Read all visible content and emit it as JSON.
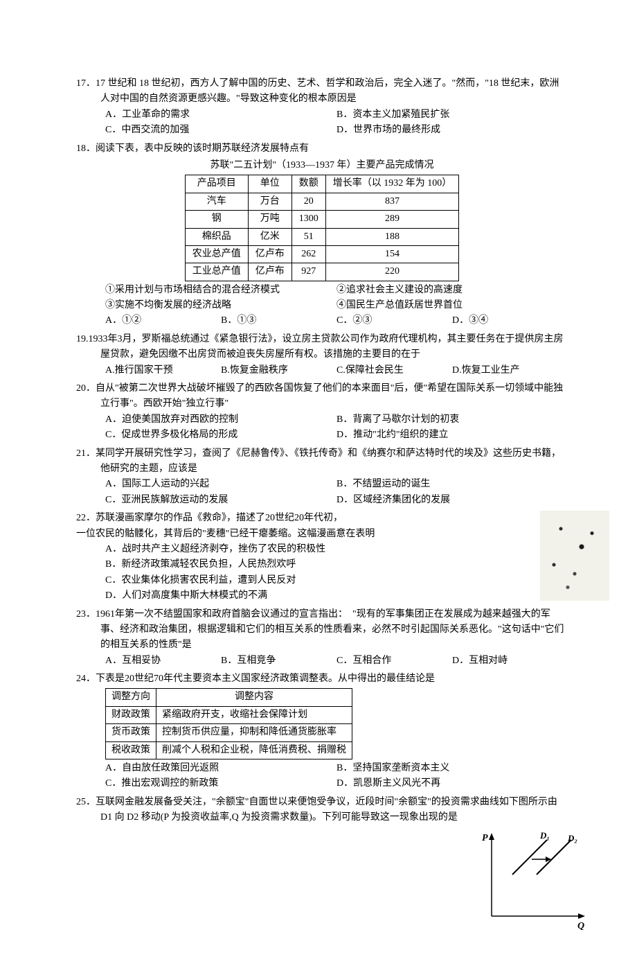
{
  "q17": {
    "num": "17．",
    "text": "17 世纪和 18 世纪初，西方人了解中国的历史、艺术、哲学和政治后，完全入迷了。\"然而，\"18 世纪末，欧洲人对中国的自然资源更感兴趣。\"导致这种变化的根本原因是",
    "opts": {
      "a": "A．工业革命的需求",
      "b": "B．资本主义加紧殖民扩张",
      "c": "C．中西交流的加强",
      "d": "D．世界市场的最终形成"
    }
  },
  "q18": {
    "num": "18．",
    "text": "阅读下表，表中反映的该时期苏联经济发展特点有",
    "caption": "苏联\"二五计划\"（1933—1937 年）主要产品完成情况",
    "table": {
      "headers": [
        "产品项目",
        "单位",
        "数额",
        "增长率（以 1932 年为 100）"
      ],
      "rows": [
        [
          "汽车",
          "万台",
          "20",
          "837"
        ],
        [
          "钢",
          "万吨",
          "1300",
          "289"
        ],
        [
          "棉织品",
          "亿米",
          "51",
          "188"
        ],
        [
          "农业总产值",
          "亿卢布",
          "262",
          "154"
        ],
        [
          "工业总产值",
          "亿卢布",
          "927",
          "220"
        ]
      ]
    },
    "notes": {
      "n1": "①采用计划与市场相结合的混合经济模式",
      "n2": "②追求社会主义建设的高速度",
      "n3": "③实施不均衡发展的经济战略",
      "n4": "④国民生产总值跃居世界首位"
    },
    "opts": {
      "a": "A．①②",
      "b": "B．①③",
      "c": "C．②③",
      "d": "D．③④"
    }
  },
  "q19": {
    "num": "19.",
    "text": "1933年3月，罗斯福总统通过《紧急银行法》，设立房主贷款公司作为政府代理机构，其主要任务在于提供房主房屋贷款，避免因缴不出房贷而被迫丧失房屋所有权。该措施的主要目的在于",
    "opts": {
      "a": "A.推行国家干预",
      "b": "B.恢复金融秩序",
      "c": "C.保障社会民生",
      "d": "D.恢复工业生产"
    }
  },
  "q20": {
    "num": "20．",
    "text": "自从\"被第二次世界大战破坏摧毁了的西欧各国恢复了他们的本来面目\"后，便\"希望在国际关系一切领域中能独立行事\"。西欧开始\"独立行事\"",
    "opts": {
      "a": "A．迫使美国放弃对西欧的控制",
      "b": "B．背离了马歇尔计划的初衷",
      "c": "C．促成世界多极化格局的形成",
      "d": "D．推动\"北约\"组织的建立"
    }
  },
  "q21": {
    "num": "21．",
    "text": "某同学开展研究性学习，查阅了《尼赫鲁传》、《铁托传奇》和《纳赛尔和萨达特时代的埃及》这些历史书籍，他研究的主题，应该是",
    "opts": {
      "a": "A．国际工人运动的兴起",
      "b": "B．不结盟运动的诞生",
      "c": "C．亚洲民族解放运动的发展",
      "d": "D．区域经济集团化的发展"
    }
  },
  "q22": {
    "num": "22．",
    "text": "苏联漫画家摩尔的作品《救命》，描述了20世纪20年代初，",
    "text2": "一位农民的骷髅化，其背后的\"麦穗\"已经干瘪萎缩。这幅漫画意在表明",
    "opts": {
      "a": "A．战时共产主义超经济剥夺，挫伤了农民的积极性",
      "b": "B．新经济政策减轻农民负担，人民热烈欢呼",
      "c": "C．农业集体化损害农民利益，遭到人民反对",
      "d": "D．人们对高度集中斯大林模式的不满"
    }
  },
  "q23": {
    "num": "23．",
    "text": "1961年第一次不结盟国家和政府首脑会议通过的宣言指出：　\"现有的军事集团正在发展成为越来越强大的军事、经济和政治集团，根据逻辑和它们的相互关系的性质看来，必然不时引起国际关系恶化。\"这句话中\"它们的相互关系的性质\"是",
    "opts": {
      "a": "A．互相妥协",
      "b": "B．互相竞争",
      "c": "C．互相合作",
      "d": "D．互相对峙"
    }
  },
  "q24": {
    "num": "24．",
    "text": "下表是20世纪70年代主要资本主义国家经济政策调整表。从中得出的最佳结论是",
    "table": {
      "headers": [
        "调整方向",
        "调整内容"
      ],
      "rows": [
        [
          "财政政策",
          "紧缩政府开支，收缩社会保障计划"
        ],
        [
          "货币政策",
          "控制货币供应量，抑制和降低通货膨胀率"
        ],
        [
          "税收政策",
          "削减个人税和企业税，降低消费税、捐赠税"
        ]
      ]
    },
    "opts": {
      "a": "A．自由放任政策回光返照",
      "b": "B．坚持国家垄断资本主义",
      "c": "C．推出宏观调控的新政策",
      "d": "D．凯恩斯主义风光不再"
    }
  },
  "q25": {
    "num": "25．",
    "text": "互联网金融发展备受关注，\"余额宝\"自面世以来便饱受争议，近段时间\"余额宝\"的投资需求曲线如下图所示由 D1 向 D2 移动(P 为投资收益率,Q 为投资需求数量)。下列可能导致这一现象出现的是",
    "chart": {
      "y_label": "P",
      "x_label": "Q",
      "d1_label": "D₁",
      "d2_label": "D₂",
      "width": 170,
      "height": 150,
      "axis_color": "#000",
      "line_color": "#000",
      "font_size": 14,
      "font_style": "italic"
    }
  }
}
